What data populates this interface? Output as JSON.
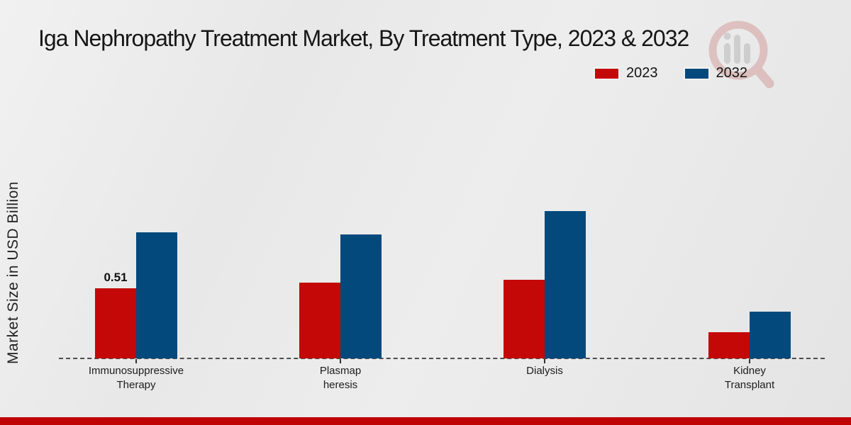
{
  "title": "Iga Nephropathy Treatment Market, By Treatment Type, 2023 & 2032",
  "watermark_icon": "magnifier-bar-chart-logo",
  "footer_accent_color": "#c00404",
  "chart_data": {
    "type": "bar",
    "title": "Iga Nephropathy Treatment Market, By Treatment Type, 2023 & 2032",
    "xlabel": "",
    "ylabel": "Market Size in USD Billion",
    "categories": [
      "Immunosuppressive Therapy",
      "Plasmapheresis",
      "Dialysis",
      "Kidney Transplant"
    ],
    "category_display_lines": [
      [
        "Immunosuppressive",
        "Therapy"
      ],
      [
        "Plasmap",
        "heresis"
      ],
      [
        "Dialysis"
      ],
      [
        "Kidney",
        "Transplant"
      ]
    ],
    "series": [
      {
        "name": "2023",
        "color": "#c40707",
        "values": [
          0.51,
          0.55,
          0.57,
          0.19
        ]
      },
      {
        "name": "2032",
        "color": "#04497c",
        "values": [
          0.92,
          0.9,
          1.07,
          0.34
        ]
      }
    ],
    "data_labels": [
      {
        "series_index": 0,
        "category_index": 0,
        "text": "0.51"
      }
    ],
    "legend": {
      "position": "top-right",
      "items": [
        "2023",
        "2032"
      ]
    },
    "baseline_style": "dashed",
    "grid": false,
    "y_axis_ticks_visible": false,
    "ylim": [
      0,
      1.2
    ]
  }
}
